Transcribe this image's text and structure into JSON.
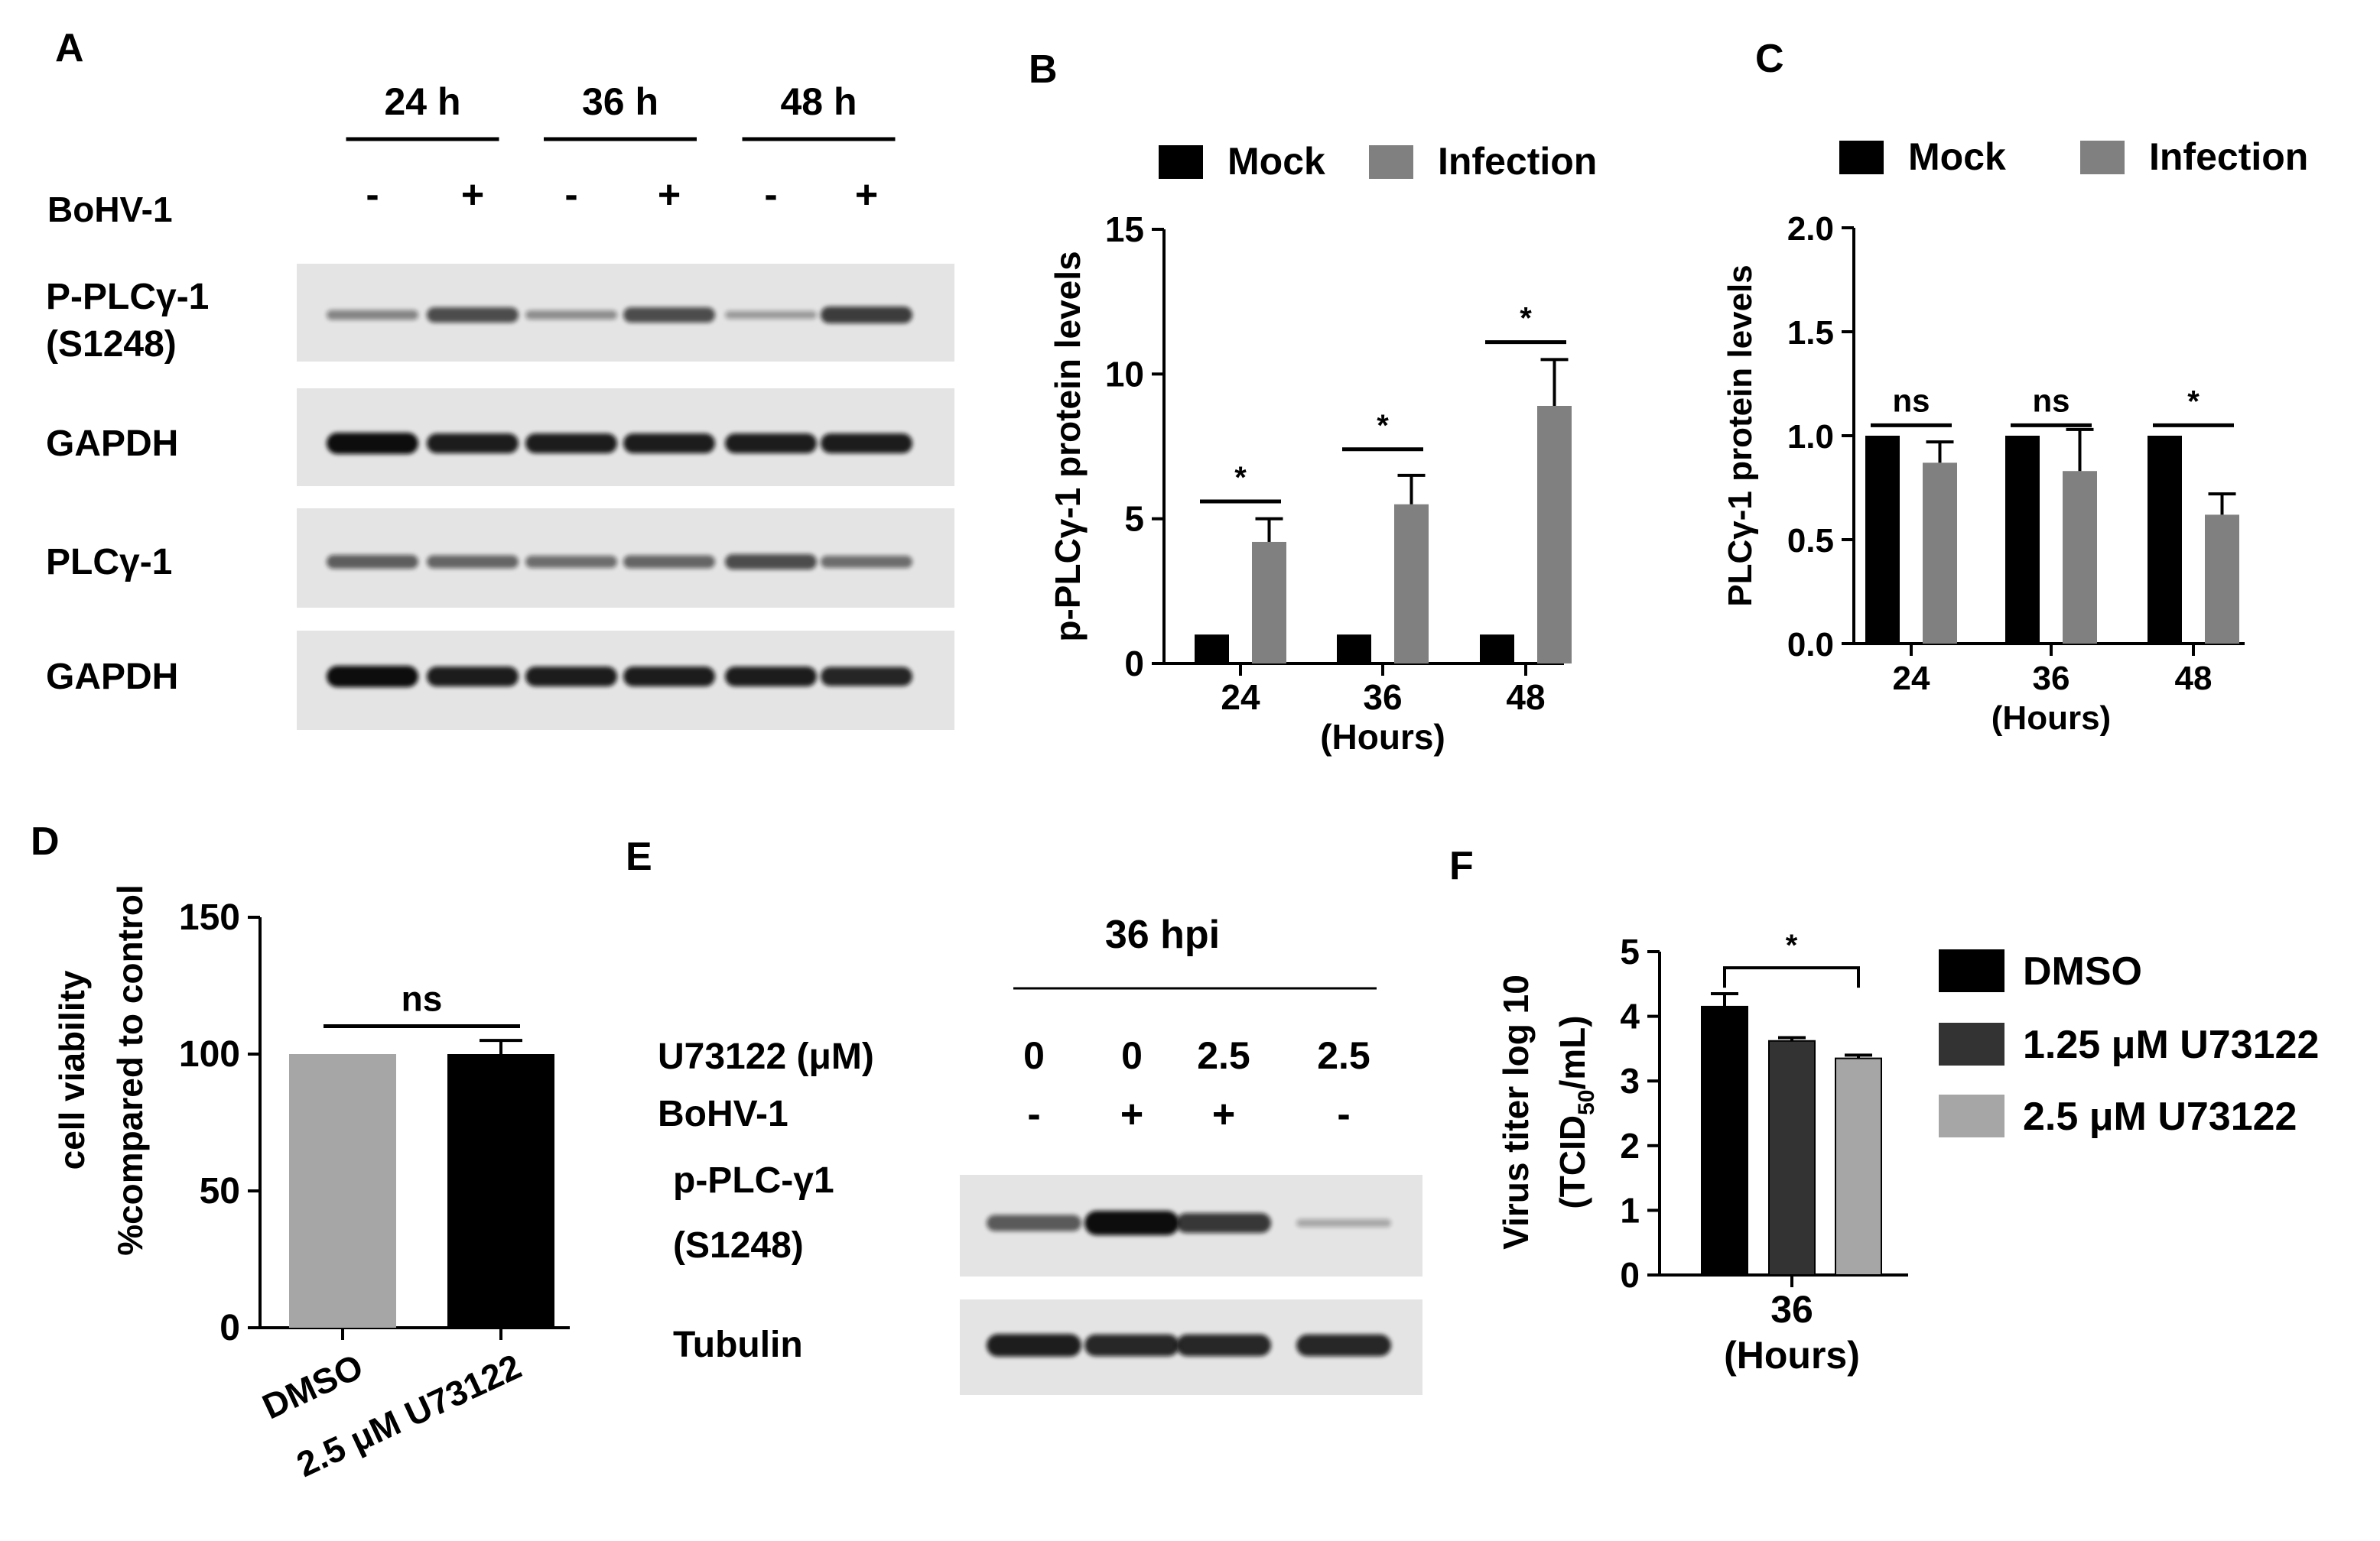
{
  "colors": {
    "black": "#000000",
    "dark_gray": "#333333",
    "mid_gray": "#808080",
    "light_gray": "#a6a6a6",
    "blot_bg": "#e4e4e4",
    "band": "#0a0a0a"
  },
  "panels": {
    "A": "A",
    "B": "B",
    "C": "C",
    "D": "D",
    "E": "E",
    "F": "F"
  },
  "blot_a": {
    "timepoints": [
      "24 h",
      "36 h",
      "48 h"
    ],
    "treatment_label": "BoHV-1",
    "treatment_signs": [
      "-",
      "+",
      "-",
      "+",
      "-",
      "+"
    ],
    "rows": [
      {
        "label_lines": [
          "P-PLCγ-1",
          "(S1248)"
        ],
        "intensity": [
          0.25,
          0.6,
          0.2,
          0.6,
          0.12,
          0.7
        ]
      },
      {
        "label_lines": [
          "GAPDH"
        ],
        "intensity": [
          1.0,
          0.9,
          0.9,
          0.9,
          0.9,
          0.9
        ]
      },
      {
        "label_lines": [
          "PLCγ-1"
        ],
        "intensity": [
          0.5,
          0.45,
          0.4,
          0.45,
          0.6,
          0.4
        ]
      },
      {
        "label_lines": [
          "GAPDH"
        ],
        "intensity": [
          1.0,
          0.9,
          0.9,
          0.9,
          0.9,
          0.85
        ]
      }
    ]
  },
  "blot_e": {
    "header": "36 hpi",
    "inhibitor_label": "U73122 (μM)",
    "inhibitor_values": [
      "0",
      "0",
      "2.5",
      "2.5"
    ],
    "treatment_label": "BoHV-1",
    "treatment_signs": [
      "-",
      "+",
      "+",
      "-"
    ],
    "rows": [
      {
        "label_lines": [
          "p-PLC-γ1",
          "(S1248)"
        ],
        "intensity": [
          0.55,
          1.0,
          0.75,
          0.1
        ]
      },
      {
        "label_lines": [
          "Tubulin"
        ],
        "intensity": [
          0.9,
          0.85,
          0.85,
          0.85
        ]
      }
    ]
  },
  "chart_data": [
    {
      "panel": "B",
      "type": "bar",
      "categories": [
        "24",
        "36",
        "48"
      ],
      "xlabel": "(Hours)",
      "ylabel": "p-PLCγ-1 protein levels",
      "ylim": [
        0,
        15
      ],
      "yticks": [
        0,
        5,
        10,
        15
      ],
      "legend_position": "top",
      "series": [
        {
          "name": "Mock",
          "color": "#000000",
          "values": [
            1,
            1,
            1
          ],
          "errors": [
            0,
            0,
            0
          ]
        },
        {
          "name": "Infection",
          "color": "#808080",
          "values": [
            4.2,
            5.5,
            8.9
          ],
          "errors": [
            0.8,
            1.0,
            1.6
          ]
        }
      ],
      "significance": [
        {
          "category": 0,
          "label": "*",
          "y": 5.6
        },
        {
          "category": 1,
          "label": "*",
          "y": 7.4
        },
        {
          "category": 2,
          "label": "*",
          "y": 11.1
        }
      ]
    },
    {
      "panel": "C",
      "type": "bar",
      "categories": [
        "24",
        "36",
        "48"
      ],
      "xlabel": "(Hours)",
      "ylabel": "PLCγ-1 protein levels",
      "ylim": [
        0,
        2.0
      ],
      "yticks": [
        "0.0",
        "0.5",
        "1.0",
        "1.5",
        "2.0"
      ],
      "legend_position": "top",
      "series": [
        {
          "name": "Mock",
          "color": "#000000",
          "values": [
            1.0,
            1.0,
            1.0
          ],
          "errors": [
            0,
            0,
            0
          ]
        },
        {
          "name": "Infection",
          "color": "#808080",
          "values": [
            0.87,
            0.83,
            0.62
          ],
          "errors": [
            0.1,
            0.2,
            0.1
          ]
        }
      ],
      "significance": [
        {
          "category": 0,
          "label": "ns",
          "y": 1.05
        },
        {
          "category": 1,
          "label": "ns",
          "y": 1.05
        },
        {
          "category": 2,
          "label": "*",
          "y": 1.05
        }
      ]
    },
    {
      "panel": "D",
      "type": "bar",
      "categories": [
        "DMSO",
        "2.5 μM U73122"
      ],
      "ylabel_lines": [
        "cell viability",
        "%compared to control"
      ],
      "ylim": [
        0,
        150
      ],
      "yticks": [
        0,
        50,
        100,
        150
      ],
      "series": [
        {
          "values": [
            100,
            100
          ],
          "errors": [
            0,
            5
          ],
          "colors": [
            "#a6a6a6",
            "#000000"
          ]
        }
      ],
      "significance": [
        {
          "from": 0,
          "to": 1,
          "label": "ns",
          "y": 113
        }
      ]
    },
    {
      "panel": "F",
      "type": "bar",
      "categories": [
        "36"
      ],
      "xlabel": "(Hours)",
      "ylabel_main": "Virus titer log 10",
      "ylabel_unit": {
        "pre": "(TCID",
        "sub": "50",
        "post": "/mL)"
      },
      "ylim": [
        0,
        5
      ],
      "yticks": [
        0,
        1,
        2,
        3,
        4,
        5
      ],
      "legend_position": "right",
      "series": [
        {
          "name": "DMSO",
          "color": "#000000",
          "values": [
            4.15
          ],
          "errors": [
            0.2
          ]
        },
        {
          "name": "1.25 μM U73122",
          "color": "#333333",
          "values": [
            3.62
          ],
          "errors": [
            0.05
          ]
        },
        {
          "name": "2.5 μM U73122",
          "color": "#a6a6a6",
          "values": [
            3.35
          ],
          "errors": [
            0.05
          ]
        }
      ],
      "significance": [
        {
          "from": 0,
          "to": 2,
          "label": "*",
          "y": 4.75
        }
      ]
    }
  ]
}
